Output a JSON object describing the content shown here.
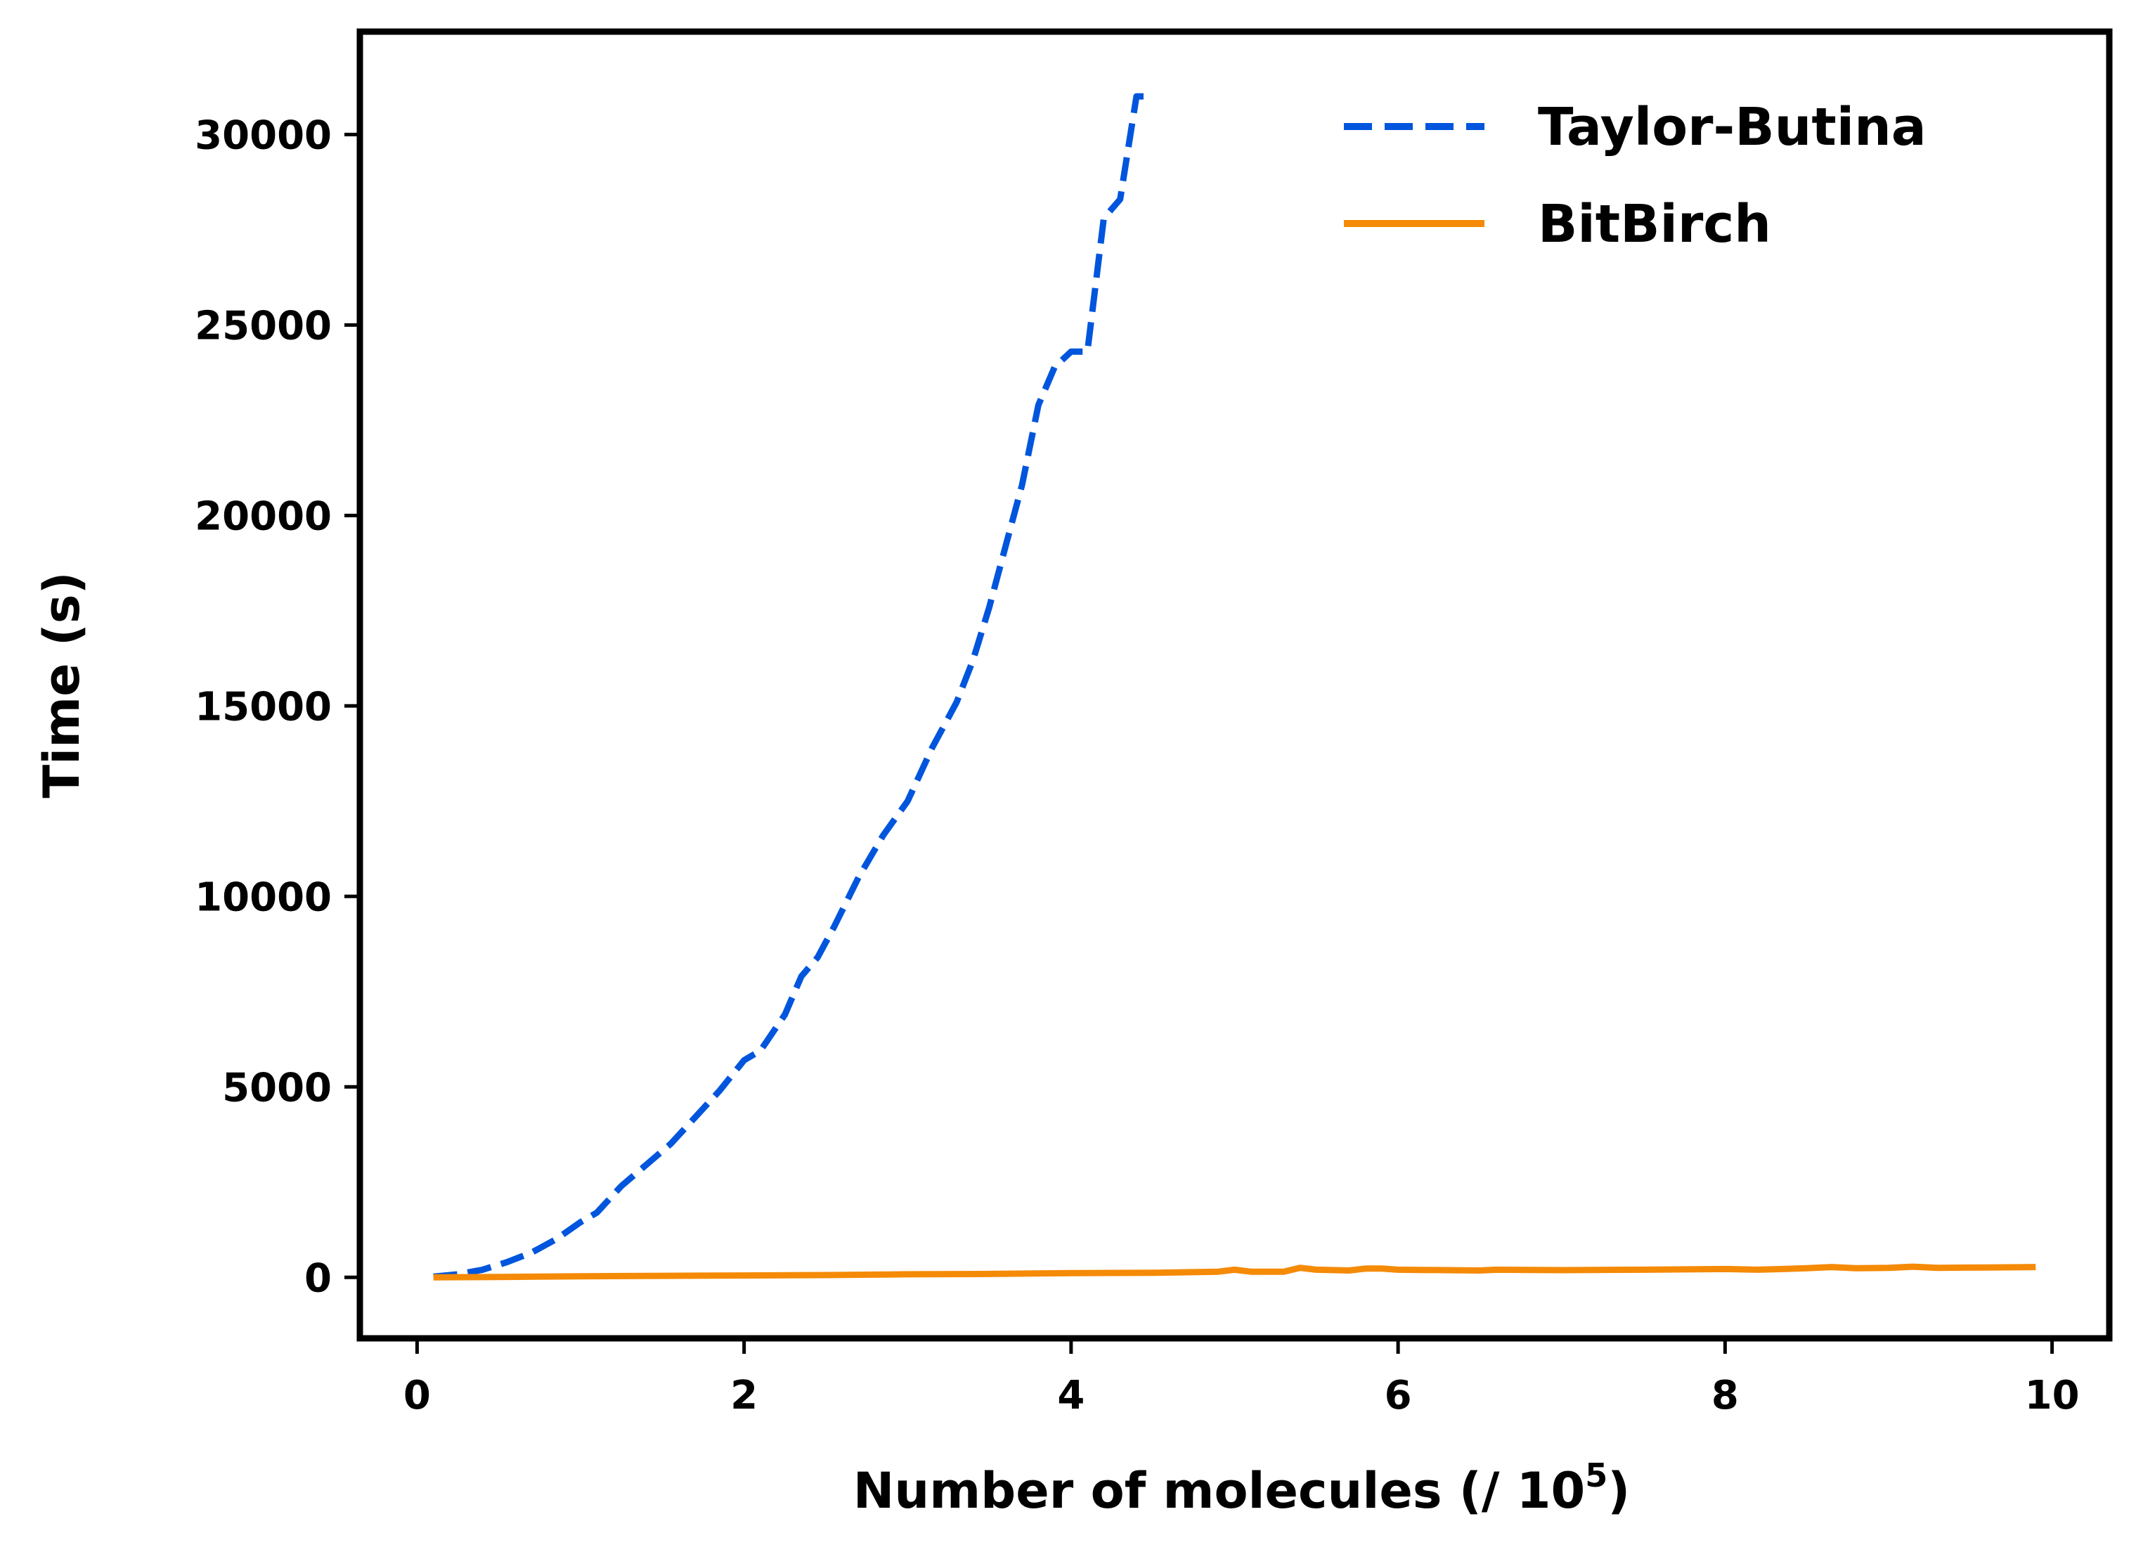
{
  "chart_data": {
    "type": "line",
    "title": "",
    "xlabel": "Number of molecules (/ 10",
    "xlabel_superscript": "5",
    "xlabel_suffix": ")",
    "ylabel": "Time (s)",
    "xlim": [
      -0.35,
      10.35
    ],
    "ylim": [
      -1600,
      32700
    ],
    "xticks": [
      0,
      2,
      4,
      6,
      8,
      10
    ],
    "xtick_labels": [
      "0",
      "2",
      "4",
      "6",
      "8",
      "10"
    ],
    "yticks": [
      0,
      5000,
      10000,
      15000,
      20000,
      25000,
      30000
    ],
    "ytick_labels": [
      "0",
      "5000",
      "10000",
      "15000",
      "20000",
      "25000",
      "30000"
    ],
    "grid": false,
    "legend_position": "top-right",
    "series": [
      {
        "name": "Taylor-Butina",
        "color": "#0055dd",
        "style": "dashed",
        "x": [
          0.1,
          0.25,
          0.4,
          0.55,
          0.7,
          0.85,
          1.0,
          1.1,
          1.25,
          1.4,
          1.55,
          1.7,
          1.85,
          2.0,
          2.1,
          2.25,
          2.35,
          2.45,
          2.55,
          2.7,
          2.85,
          3.0,
          3.15,
          3.3,
          3.4,
          3.5,
          3.6,
          3.7,
          3.8,
          3.9,
          4.0,
          4.1,
          4.2,
          4.3,
          4.4,
          4.5
        ],
        "y": [
          20,
          80,
          200,
          400,
          650,
          1000,
          1450,
          1700,
          2400,
          2950,
          3500,
          4200,
          4900,
          5700,
          5950,
          6900,
          7900,
          8400,
          9200,
          10500,
          11600,
          12500,
          13900,
          15100,
          16200,
          17600,
          19200,
          20800,
          22900,
          23900,
          24300,
          24300,
          27800,
          28300,
          31000,
          31000
        ],
        "y_note_omitted": true
      },
      {
        "name": "BitBirch",
        "color": "#f58a07",
        "style": "solid",
        "x": [
          0.1,
          0.5,
          1.0,
          1.5,
          2.0,
          2.5,
          3.0,
          3.5,
          4.0,
          4.5,
          4.9,
          5.0,
          5.1,
          5.3,
          5.4,
          5.5,
          5.7,
          5.8,
          5.9,
          6.0,
          6.5,
          6.6,
          7.0,
          7.5,
          8.0,
          8.2,
          8.5,
          8.65,
          8.8,
          9.0,
          9.15,
          9.3,
          9.6,
          9.9
        ],
        "y": [
          0,
          10,
          30,
          40,
          50,
          60,
          80,
          90,
          110,
          120,
          150,
          200,
          150,
          150,
          250,
          200,
          180,
          230,
          230,
          200,
          180,
          200,
          190,
          200,
          220,
          200,
          240,
          270,
          240,
          250,
          280,
          250,
          260,
          270
        ]
      }
    ]
  }
}
